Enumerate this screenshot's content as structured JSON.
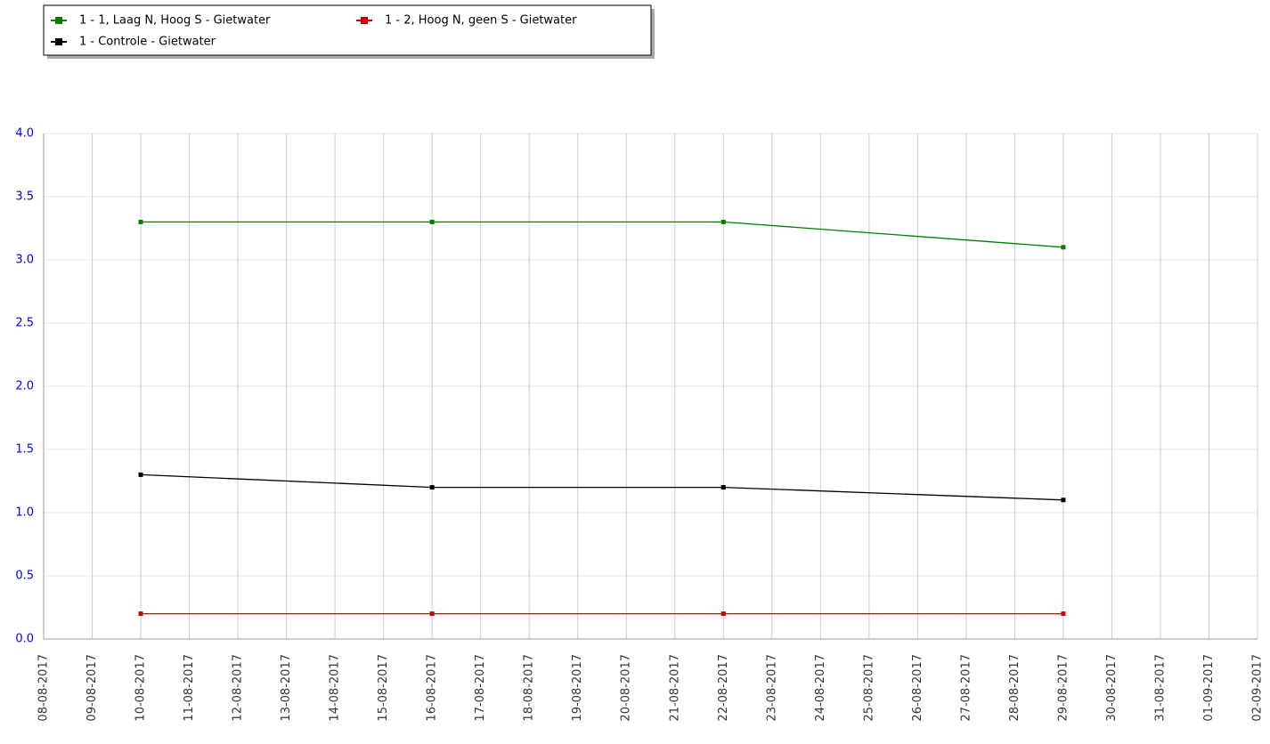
{
  "chart_data": {
    "type": "line",
    "x": [
      "10-08-2017",
      "16-08-2017",
      "22-08-2017",
      "29-08-2017"
    ],
    "series": [
      {
        "name": "1 - 1, Laag N, Hoog S - Gietwater",
        "color": "#008000",
        "values": [
          3.3,
          3.3,
          3.3,
          3.1
        ]
      },
      {
        "name": "1 - 2, Hoog N, geen S - Gietwater",
        "color": "#cc0000",
        "values": [
          0.2,
          0.2,
          0.2,
          0.2
        ]
      },
      {
        "name": "1 - Controle - Gietwater",
        "color": "#000000",
        "values": [
          1.3,
          1.2,
          1.2,
          1.1
        ]
      }
    ],
    "xlim": [
      "08-08-2017",
      "02-09-2017"
    ],
    "xticks": [
      "08-08-2017",
      "09-08-2017",
      "10-08-2017",
      "11-08-2017",
      "12-08-2017",
      "13-08-2017",
      "14-08-2017",
      "15-08-2017",
      "16-08-2017",
      "17-08-2017",
      "18-08-2017",
      "19-08-2017",
      "20-08-2017",
      "21-08-2017",
      "22-08-2017",
      "23-08-2017",
      "24-08-2017",
      "25-08-2017",
      "26-08-2017",
      "27-08-2017",
      "28-08-2017",
      "29-08-2017",
      "30-08-2017",
      "31-08-2017",
      "01-09-2017",
      "02-09-2017"
    ],
    "ylim": [
      0,
      4
    ],
    "yticks": [
      {
        "value": 0,
        "label": "0.0"
      },
      0.5,
      {
        "value": 1,
        "label": "1.0"
      },
      1.5,
      {
        "value": 2,
        "label": "2.0"
      },
      2.5,
      {
        "value": 3,
        "label": "3.0"
      },
      3.5,
      {
        "value": 4,
        "label": "4.0"
      }
    ],
    "grid": true,
    "legend": "top-left"
  }
}
